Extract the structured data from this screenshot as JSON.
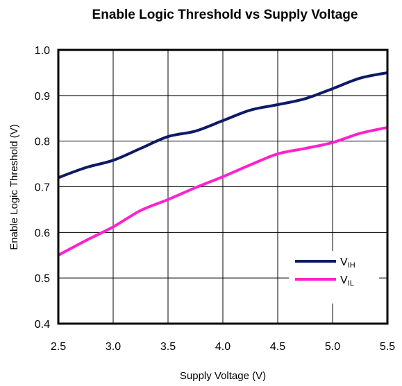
{
  "chart_data": {
    "type": "line",
    "title": "Enable Logic Threshold vs Supply Voltage",
    "xlabel": "Supply Voltage (V)",
    "ylabel": "Enable Logic Threshold (V)",
    "xlim": [
      2.5,
      5.5
    ],
    "ylim": [
      0.4,
      1.0
    ],
    "x_ticks": [
      "2.5",
      "3.0",
      "3.5",
      "4.0",
      "4.5",
      "5.0",
      "5.5"
    ],
    "y_ticks": [
      "0.4",
      "0.5",
      "0.6",
      "0.7",
      "0.8",
      "0.9",
      "1.0"
    ],
    "grid": true,
    "legend_position": "bottom-right",
    "x": [
      2.5,
      2.75,
      3.0,
      3.25,
      3.5,
      3.75,
      4.0,
      4.25,
      4.5,
      4.75,
      5.0,
      5.25,
      5.5
    ],
    "series": [
      {
        "name_main": "V",
        "name_sub": "IH",
        "color": "#0d1a66",
        "values": [
          0.72,
          0.742,
          0.758,
          0.784,
          0.81,
          0.822,
          0.845,
          0.868,
          0.88,
          0.893,
          0.915,
          0.938,
          0.95
        ]
      },
      {
        "name_main": "V",
        "name_sub": "IL",
        "color": "#ff22cc",
        "values": [
          0.55,
          0.582,
          0.612,
          0.648,
          0.672,
          0.698,
          0.722,
          0.748,
          0.772,
          0.784,
          0.797,
          0.817,
          0.83
        ]
      }
    ]
  }
}
